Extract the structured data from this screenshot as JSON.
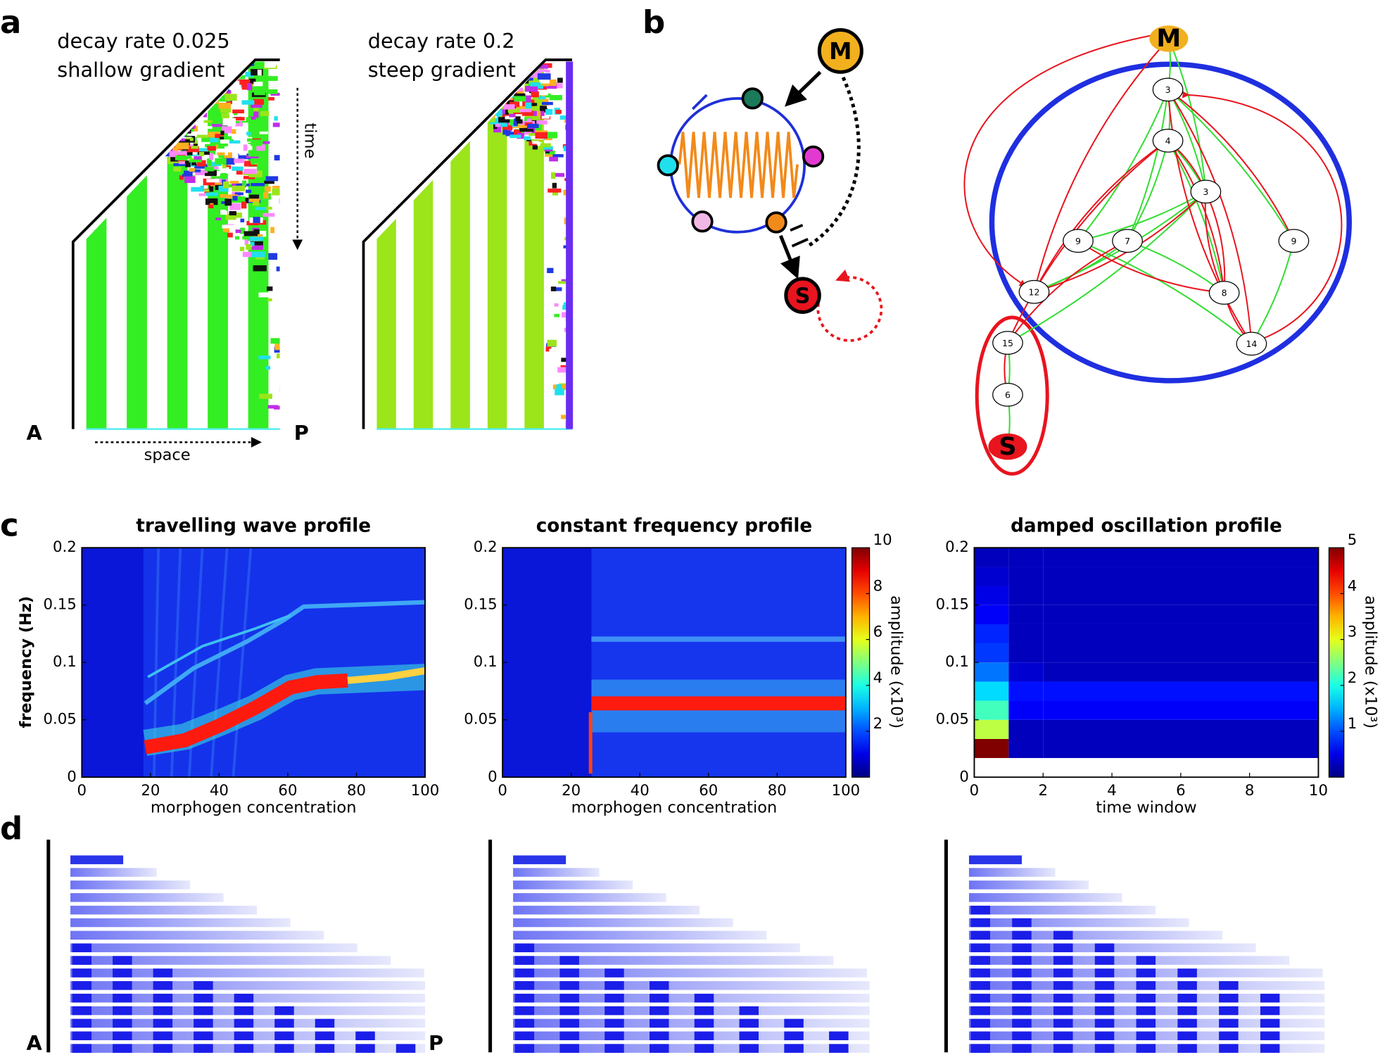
{
  "panel_labels": [
    "a",
    "b",
    "c",
    "d"
  ],
  "panel_a": {
    "left": {
      "line1": "decay rate 0.025",
      "line2": "shallow gradient"
    },
    "right": {
      "line1": "decay rate 0.2",
      "line2": "steep gradient"
    },
    "time": "time",
    "space": "space",
    "anterior": "A",
    "posterior": "P"
  },
  "panel_b": {
    "circuit_nodes": [
      "M",
      "S"
    ],
    "network_nodes": [
      "M",
      "3",
      "4",
      "3",
      "9",
      "7",
      "9",
      "12",
      "8",
      "15",
      "14",
      "6",
      "S"
    ]
  },
  "chart_data": [
    {
      "type": "heatmap",
      "title": "travelling wave profile",
      "x_label": "morphogen concentration",
      "y_label": "frequency (Hz)",
      "xlim": [
        0,
        100
      ],
      "xticks": [
        0,
        20,
        40,
        60,
        80,
        100
      ],
      "ylim": [
        0,
        0.2
      ],
      "yticks": [
        0,
        0.05,
        0.1,
        0.15,
        0.2
      ]
    },
    {
      "type": "heatmap",
      "title": "constant frequency profile",
      "x_label": "morphogen concentration",
      "xlim": [
        0,
        100
      ],
      "xticks": [
        0,
        20,
        40,
        60,
        80,
        100
      ],
      "ylim": [
        0,
        0.2
      ],
      "yticks": [
        0,
        0.05,
        0.1,
        0.15,
        0.2
      ],
      "colorbar_label": "amplitude (x10³)",
      "zlim": [
        0,
        10
      ],
      "zticks": [
        2,
        4,
        6,
        8,
        10
      ]
    },
    {
      "type": "heatmap",
      "title": "damped oscillation profile",
      "x_label": "time window",
      "xlim": [
        0,
        10
      ],
      "xticks": [
        0,
        2,
        4,
        6,
        8,
        10
      ],
      "ylim": [
        0,
        0.2
      ],
      "yticks": [
        0,
        0.05,
        0.1,
        0.15,
        0.2
      ],
      "colorbar_label": "amplitude (x10³)",
      "zlim": [
        0,
        5
      ],
      "zticks": [
        1,
        2,
        3,
        4,
        5
      ],
      "x_edges": [
        0,
        1,
        2,
        10
      ],
      "y_edges": [
        0.0167,
        0.0333,
        0.05,
        0.0667,
        0.0833,
        0.1,
        0.1167,
        0.1333,
        0.15,
        0.1667,
        0.1833,
        0.2
      ],
      "z": [
        [
          5,
          0.3,
          0.3
        ],
        [
          2.8,
          0.3,
          0.3
        ],
        [
          2.2,
          0.6,
          0.6
        ],
        [
          1.7,
          0.7,
          0.7
        ],
        [
          1.2,
          0.4,
          0.3
        ],
        [
          0.9,
          0.3,
          0.3
        ],
        [
          0.8,
          0.3,
          0.3
        ],
        [
          0.6,
          0.3,
          0.3
        ],
        [
          0.5,
          0.3,
          0.3
        ],
        [
          0.4,
          0.3,
          0.3
        ],
        [
          0.3,
          0.3,
          0.3
        ]
      ]
    }
  ],
  "panel_d": {
    "anterior": "A",
    "posterior": "P"
  }
}
